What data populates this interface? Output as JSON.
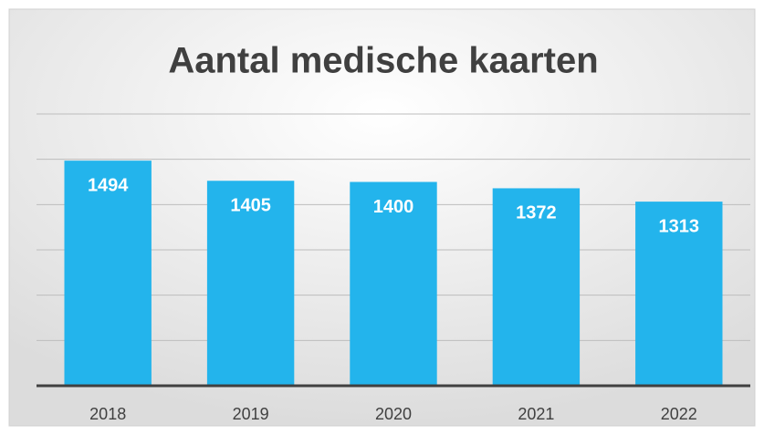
{
  "chart_data": {
    "type": "bar",
    "title": "Aantal medische kaarten",
    "categories": [
      "2018",
      "2019",
      "2020",
      "2021",
      "2022"
    ],
    "values": [
      1494,
      1405,
      1400,
      1372,
      1313
    ],
    "color": "#23b4ec",
    "ylim": [
      500,
      1700
    ],
    "yticks": [
      500,
      700,
      900,
      1100,
      1300,
      1500,
      1700
    ],
    "grid": true
  }
}
